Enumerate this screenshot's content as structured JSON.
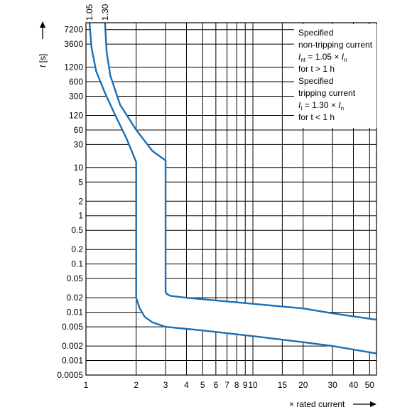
{
  "chart_data": {
    "type": "line",
    "title": "",
    "xlabel": "× rated current",
    "ylabel": {
      "italic": "t",
      "rest": " [s]"
    },
    "xscale": "log",
    "yscale": "log",
    "xlim": [
      1,
      55
    ],
    "ylim": [
      0.0005,
      10000
    ],
    "grid": true,
    "x_ticks": [
      1,
      2,
      3,
      4,
      5,
      6,
      7,
      8,
      9,
      10,
      15,
      20,
      30,
      40,
      50
    ],
    "y_ticks": [
      0.0005,
      0.001,
      0.002,
      0.005,
      0.01,
      0.02,
      0.05,
      0.1,
      0.2,
      0.5,
      1,
      2,
      5,
      10,
      30,
      60,
      120,
      300,
      600,
      1200,
      3600,
      7200
    ],
    "x_tick_labels": [
      "1",
      "2",
      "3",
      "4",
      "5",
      "6",
      "7",
      "8",
      "9",
      "10",
      "15",
      "20",
      "30",
      "40",
      "50"
    ],
    "y_tick_labels": [
      "0.0005",
      "0.001",
      "0.002",
      "0.005",
      "0.01",
      "0.02",
      "0.05",
      "0.1",
      "0.2",
      "0.5",
      "1",
      "2",
      "5",
      "10",
      "30",
      "60",
      "120",
      "300",
      "600",
      "1200",
      "3600",
      "7200"
    ],
    "series": [
      {
        "name": "1.05",
        "x": [
          1.05,
          1.08,
          1.15,
          1.3,
          1.5,
          1.75,
          2.0,
          2.0,
          2.0,
          2.1,
          2.25,
          2.5,
          3.0,
          5.0,
          10.0,
          20.0,
          30.0,
          55.0
        ],
        "y": [
          10000,
          3000,
          1000,
          350,
          120,
          40,
          13,
          13,
          0.02,
          0.012,
          0.008,
          0.0062,
          0.005,
          0.0042,
          0.0032,
          0.0024,
          0.002,
          0.0014
        ]
      },
      {
        "name": "1.30",
        "x": [
          1.3,
          1.33,
          1.4,
          1.6,
          2.0,
          2.5,
          3.0,
          3.0,
          3.0,
          3.05,
          3.2,
          4.0,
          10.0,
          20.0,
          30.0,
          55.0
        ],
        "y": [
          10000,
          2500,
          800,
          200,
          60,
          22,
          14,
          14,
          0.026,
          0.024,
          0.022,
          0.02,
          0.015,
          0.012,
          0.0095,
          0.007
        ]
      }
    ],
    "annotation": {
      "line1": "Specified",
      "line2": "non-tripping current",
      "line3_I": "I",
      "line3_sub": "nt",
      "line3_mid": " = 1.05 × ",
      "line3_I2": "I",
      "line3_sub2": "n",
      "line4": "for t > 1 h",
      "line5": "Specified",
      "line6": "tripping current",
      "line7_I": "I",
      "line7_sub": "t",
      "line7_mid": " = 1.30 × ",
      "line7_I2": "I",
      "line7_sub2": "n",
      "line8": "for t < 1 h"
    },
    "curve_color": "#1a6fb5"
  }
}
